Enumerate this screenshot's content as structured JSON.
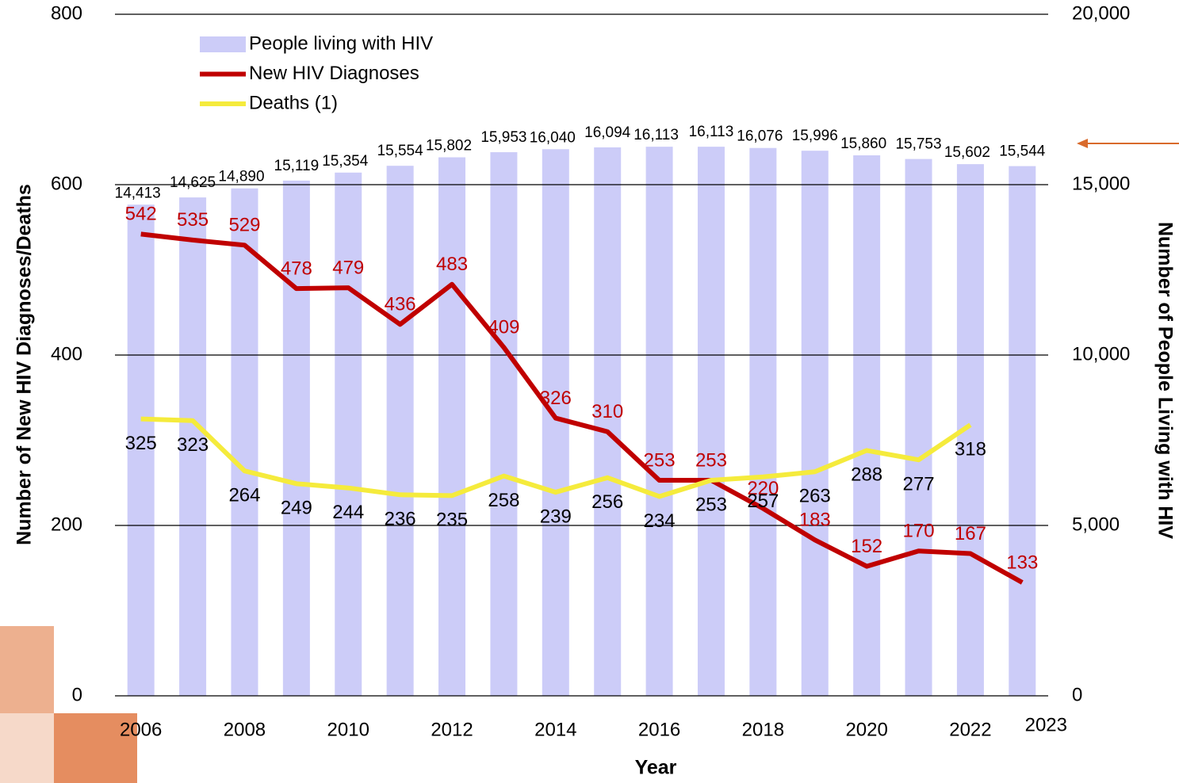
{
  "chart_data": {
    "type": "bar",
    "categories": [
      "2006",
      null,
      "2008",
      null,
      "2010",
      null,
      "2012",
      null,
      "2014",
      null,
      "2016",
      null,
      "2018",
      null,
      "2020",
      null,
      "2022",
      "2023"
    ],
    "series": [
      {
        "name": "People living with HIV",
        "type": "bar",
        "axis": "y2",
        "color": "#ccccf8",
        "values": [
          14413,
          14625,
          14890,
          15119,
          15354,
          15554,
          15802,
          15953,
          16040,
          16094,
          16113,
          16113,
          16076,
          15996,
          15860,
          15753,
          15602,
          15544
        ],
        "value_labels": [
          "14,413",
          "14,625",
          "14,890",
          "15,119",
          "15,354",
          "15,554",
          "15,802",
          "15,953",
          "16,040",
          "16,094",
          "16,113",
          "16,113",
          "16,076",
          "15,996",
          "15,860",
          "15,753",
          "15,602",
          "15,544"
        ]
      },
      {
        "name": "New HIV Diagnoses",
        "type": "line",
        "color": "#c00000",
        "values": [
          542,
          535,
          529,
          478,
          479,
          436,
          483,
          409,
          326,
          310,
          253,
          253,
          220,
          183,
          152,
          170,
          167,
          133
        ]
      },
      {
        "name": "Deaths (1)",
        "type": "line",
        "color": "#f5eb3c",
        "values": [
          325,
          323,
          264,
          249,
          244,
          236,
          235,
          258,
          239,
          256,
          234,
          253,
          257,
          263,
          288,
          277,
          318,
          null
        ]
      }
    ],
    "x_label": "Year",
    "y_label": "Number of New HIV Diagnoses/Deaths",
    "y2_label": "Number of People Living with HIV",
    "ylim": [
      0,
      800
    ],
    "yticks": [
      0,
      200,
      400,
      600,
      800
    ],
    "y2lim": [
      0,
      20000
    ],
    "y2ticks": [
      0,
      {
        "value": 5000,
        "label": "5,000"
      },
      {
        "value": 10000,
        "label": "10,000"
      },
      {
        "value": 15000,
        "label": "15,000"
      },
      {
        "value": 20000,
        "label": "20,000"
      }
    ],
    "grid": true,
    "legend": "upper left"
  }
}
